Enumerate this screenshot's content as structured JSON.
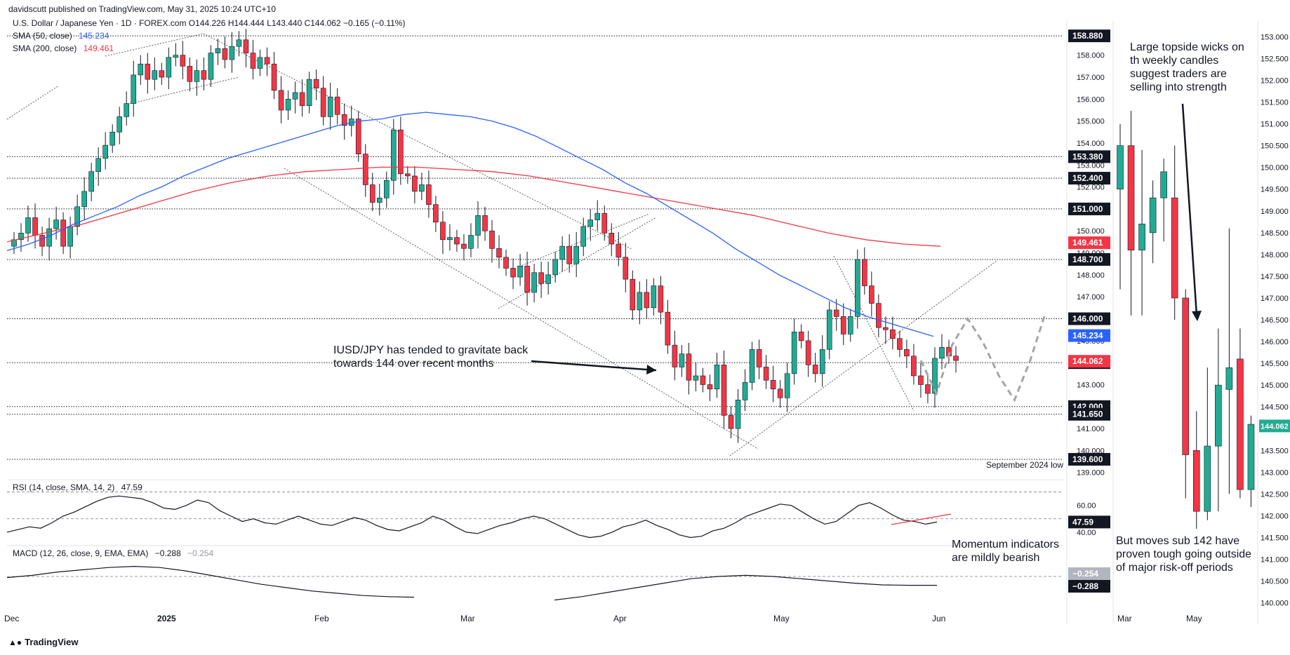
{
  "header": {
    "published": "davidscutt published on TradingView.com, May 31, 2025 10:24 UTC+10",
    "symbol_line": "U.S. Dollar / Japanese Yen · 1D · FOREX.com  O144.226  H144.444  L143.440  C144.062  −0.165 (−0.11%)"
  },
  "legend": {
    "sma50_label": "SMA (50, close)",
    "sma50_value": "145.234",
    "sma200_label": "SMA (200, close)",
    "sma200_value": "149.461",
    "rsi_label": "RSI (14, close, SMA, 14, 2)",
    "rsi_value": "47.59",
    "macd_label": "MACD (12, 26, close, 9, EMA, EMA)",
    "macd_value": "−0.288",
    "macd_value2": "−0.254"
  },
  "annotations": {
    "main": "IUSD/JPY has tended to gravitate back towards 144 over recent months",
    "momentum": "Momentum indicators are mildly bearish",
    "weekly_top": "Large topside wicks on th weekly candles suggest traders are selling into strength",
    "weekly_bottom": "But moves sub 142 have proven tough going outside of major risk-off periods",
    "sep_low": "September 2024 low"
  },
  "footer": {
    "brand": "TradingView"
  },
  "colors": {
    "up": "#22ab94",
    "down": "#f23645",
    "sma50": "#2962ff",
    "sma200": "#f23645",
    "rsi": "#131722",
    "level": "#131722"
  },
  "chart_data": [
    {
      "type": "candlestick",
      "title": "U.S. Dollar / Japanese Yen · 1D · FOREX.com",
      "ylim": [
        138.8,
        159.3
      ],
      "yticks": [
        "139.000",
        "140.000",
        "141.000",
        "142.000",
        "143.000",
        "144.000",
        "145.000",
        "146.000",
        "147.000",
        "148.000",
        "149.000",
        "150.000",
        "151.000",
        "152.000",
        "153.000",
        "154.000",
        "155.000",
        "156.000",
        "157.000",
        "158.000"
      ],
      "xticks": [
        "Dec",
        "2025",
        "Feb",
        "Mar",
        "Apr",
        "May",
        "Jun"
      ],
      "levels": [
        "158.880",
        "153.380",
        "152.400",
        "151.000",
        "148.700",
        "146.000",
        "144.000",
        "142.000",
        "141.650",
        "139.600"
      ],
      "price_tags": [
        {
          "label": "149.461",
          "role": "sma200"
        },
        {
          "label": "145.234",
          "role": "sma50"
        },
        {
          "label": "144.062",
          "role": "last"
        }
      ],
      "close": [
        149.6,
        149.9,
        150.6,
        149.8,
        149.3,
        150.1,
        150.5,
        149.3,
        150.2,
        151.1,
        151.8,
        152.7,
        153.3,
        153.9,
        154.5,
        155.2,
        155.8,
        157.1,
        157.6,
        156.9,
        157.3,
        157.0,
        157.9,
        158.0,
        157.5,
        156.8,
        157.3,
        156.9,
        158.1,
        158.3,
        157.8,
        158.4,
        158.7,
        158.1,
        157.4,
        157.9,
        157.6,
        156.4,
        155.5,
        156.0,
        156.3,
        155.7,
        156.9,
        156.5,
        155.2,
        156.1,
        155.3,
        154.8,
        155.1,
        153.5,
        152.1,
        151.3,
        151.5,
        152.3,
        154.6,
        152.6,
        152.5,
        151.8,
        152.1,
        151.2,
        150.4,
        149.6,
        149.7,
        149.4,
        149.2,
        149.8,
        150.7,
        150.0,
        149.2,
        148.8,
        148.3,
        147.9,
        148.4,
        147.2,
        148.1,
        147.6,
        148.0,
        148.7,
        149.3,
        148.5,
        149.3,
        150.2,
        150.5,
        150.8,
        149.9,
        149.4,
        148.8,
        147.8,
        146.4,
        147.2,
        146.5,
        147.5,
        146.3,
        144.8,
        143.8,
        144.4,
        143.2,
        143.4,
        143.0,
        142.8,
        143.9,
        141.6,
        141.0,
        142.3,
        143.1,
        144.6,
        143.8,
        143.2,
        142.8,
        142.4,
        143.5,
        145.4,
        145.0,
        143.9,
        143.5,
        144.6,
        146.4,
        146.1,
        145.3,
        146.1,
        148.7,
        147.5,
        146.7,
        145.6,
        145.5,
        145.1,
        144.6,
        144.3,
        143.4,
        143.0,
        142.6,
        144.2,
        144.7,
        144.3,
        144.1
      ],
      "sma50": [
        149.1,
        149.4,
        149.8,
        150.3,
        150.7,
        151.1,
        151.6,
        152.0,
        152.5,
        152.9,
        153.3,
        153.6,
        153.9,
        154.2,
        154.5,
        154.8,
        155.0,
        155.1,
        155.3,
        155.4,
        155.3,
        155.2,
        155.0,
        154.7,
        154.3,
        153.8,
        153.3,
        152.8,
        152.2,
        151.7,
        151.1,
        150.5,
        149.9,
        149.2,
        148.6,
        148.0,
        147.5,
        147.0,
        146.5,
        146.1,
        145.8,
        145.5,
        145.2
      ],
      "sma200": [
        149.5,
        149.9,
        150.3,
        150.8,
        151.3,
        151.8,
        152.2,
        152.5,
        152.7,
        152.8,
        152.9,
        152.9,
        152.8,
        152.7,
        152.5,
        152.2,
        151.9,
        151.6,
        151.3,
        151.0,
        150.7,
        150.3,
        149.9,
        149.6,
        149.4,
        149.3
      ],
      "projection": [
        144.1,
        142.6,
        144.8,
        146.0,
        144.9,
        143.4,
        142.3,
        144.1,
        146.3
      ]
    },
    {
      "type": "line",
      "title": "RSI (14, close, SMA, 14, 2)",
      "ylim": [
        30,
        75
      ],
      "yticks": [
        "40.00",
        "60.00"
      ],
      "levels": [
        70,
        50,
        30
      ],
      "values": [
        40,
        42,
        44,
        43,
        47,
        52,
        55,
        59,
        63,
        66,
        67,
        66,
        65,
        62,
        58,
        57,
        60,
        64,
        62,
        56,
        52,
        48,
        50,
        47,
        46,
        49,
        52,
        49,
        46,
        45,
        48,
        51,
        49,
        45,
        42,
        41,
        44,
        47,
        52,
        49,
        44,
        40,
        39,
        42,
        45,
        47,
        50,
        52,
        50,
        46,
        42,
        38,
        36,
        37,
        40,
        44,
        46,
        49,
        45,
        42,
        38,
        36,
        37,
        41,
        43,
        47,
        52,
        55,
        58,
        61,
        60,
        55,
        50,
        46,
        48,
        54,
        60,
        62,
        58,
        53,
        49,
        48,
        46,
        47.59
      ],
      "tags": [
        "47.59"
      ]
    },
    {
      "type": "line",
      "title": "MACD (12, 26, close, 9, EMA, EMA)",
      "ylim": [
        -2.5,
        2.5
      ],
      "series": [
        {
          "values": [
            0.4,
            0.6,
            0.9,
            1.1,
            1.3,
            1.4,
            1.3,
            1.0,
            0.6,
            0.2,
            -0.2,
            -0.5,
            -0.8,
            -1.0,
            -1.2,
            -1.3,
            -1.35
          ]
        },
        {
          "values": [
            -1.6,
            -1.3,
            -0.9,
            -0.5,
            -0.1,
            0.3,
            0.5,
            0.6,
            0.5,
            0.3,
            0.1,
            -0.1,
            -0.25,
            -0.29,
            -0.288
          ]
        }
      ],
      "tags": [
        "−0.254",
        "−0.288"
      ]
    },
    {
      "type": "candlestick",
      "title": "",
      "ylim": [
        139.8,
        153.2
      ],
      "yticks": [
        "140.000",
        "140.500",
        "141.000",
        "141.500",
        "142.000",
        "142.500",
        "143.000",
        "143.500",
        "144.000",
        "144.500",
        "145.000",
        "145.500",
        "146.000",
        "146.500",
        "147.000",
        "147.500",
        "148.000",
        "148.500",
        "149.000",
        "149.500",
        "150.000",
        "150.500",
        "151.000",
        "151.500",
        "152.000",
        "152.500",
        "153.000"
      ],
      "xticks": [
        "Mar",
        "May"
      ],
      "open": [
        149.5,
        150.5,
        148.1,
        148.5,
        149.3,
        149.3,
        147.0,
        143.5,
        142.1,
        143.6,
        144.9,
        145.6,
        142.6
      ],
      "close": [
        150.5,
        148.1,
        148.7,
        149.3,
        149.9,
        147.0,
        143.4,
        142.1,
        143.6,
        145.0,
        145.4,
        142.6,
        144.1
      ],
      "high": [
        151.0,
        151.3,
        150.4,
        149.7,
        150.2,
        150.5,
        147.2,
        144.4,
        145.4,
        146.3,
        148.6,
        146.3,
        144.3
      ],
      "low": [
        147.2,
        146.6,
        146.6,
        147.8,
        148.3,
        146.5,
        142.4,
        141.7,
        141.9,
        142.1,
        142.5,
        142.4,
        142.2
      ],
      "tags": [
        "144.062"
      ]
    }
  ]
}
